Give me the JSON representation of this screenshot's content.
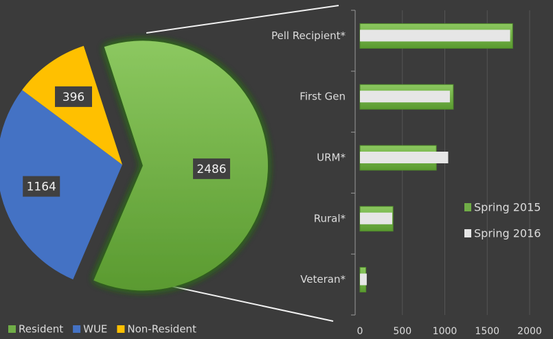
{
  "chart_data": [
    {
      "type": "pie",
      "categories": [
        "Resident",
        "WUE",
        "Non-Resident"
      ],
      "values": [
        2486,
        1164,
        396
      ],
      "colors": [
        "#70ad47",
        "#4472c4",
        "#ffc000"
      ],
      "legend": "bottom"
    },
    {
      "type": "bar",
      "orientation": "horizontal",
      "categories": [
        "Pell Recipient*",
        "First Gen",
        "URM*",
        "Rural*",
        "Veteran*"
      ],
      "series": [
        {
          "name": "Spring 2015",
          "color": "#70ad47",
          "values": [
            1800,
            1100,
            900,
            390,
            70
          ]
        },
        {
          "name": "Spring 2016",
          "color": "#e6e6e6",
          "values": [
            1770,
            1060,
            1040,
            380,
            80
          ]
        }
      ],
      "xlim": [
        0,
        2000
      ],
      "xticks": [
        0,
        500,
        1000,
        1500,
        2000
      ],
      "grid": true,
      "legend": "right"
    }
  ]
}
